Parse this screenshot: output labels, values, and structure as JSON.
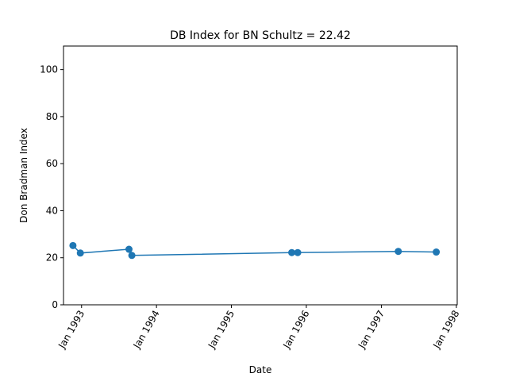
{
  "chart_data": {
    "type": "line",
    "title": "DB Index for BN Schultz = 22.42",
    "xlabel": "Date",
    "ylabel": "Don Bradman Index",
    "xlim": [
      "1992-10-05",
      "1998-01-05"
    ],
    "ylim": [
      0,
      110
    ],
    "x_ticks": [
      {
        "date": "1993-01-01",
        "label": "Jan 1993"
      },
      {
        "date": "1994-01-01",
        "label": "Jan 1994"
      },
      {
        "date": "1995-01-01",
        "label": "Jan 1995"
      },
      {
        "date": "1996-01-01",
        "label": "Jan 1996"
      },
      {
        "date": "1997-01-01",
        "label": "Jan 1997"
      },
      {
        "date": "1998-01-01",
        "label": "Jan 1998"
      }
    ],
    "y_ticks": [
      0,
      20,
      40,
      60,
      80,
      100
    ],
    "grid": false,
    "series": [
      {
        "color": "#1f77b4",
        "marker": "circle",
        "x": [
          "1992-11-20",
          "1992-12-26",
          "1993-08-20",
          "1993-09-03",
          "1995-10-22",
          "1995-11-20",
          "1997-03-24",
          "1997-09-25"
        ],
        "y": [
          25.2,
          22.0,
          23.6,
          21.0,
          22.2,
          22.2,
          22.7,
          22.42
        ]
      }
    ]
  }
}
